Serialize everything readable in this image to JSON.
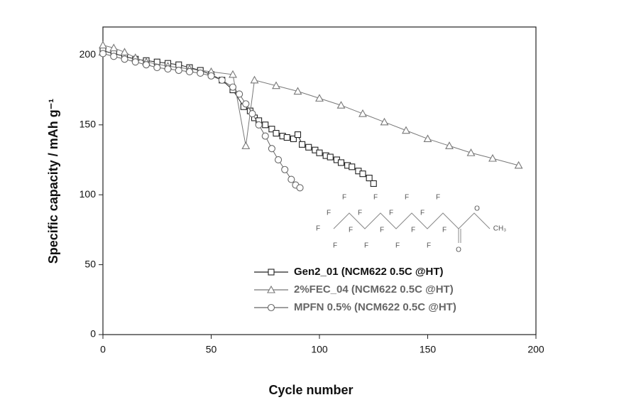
{
  "chart_data": {
    "type": "line",
    "x_label": "Cycle number",
    "y_label": "Specific capacity / mAh g⁻¹",
    "xlim": [
      0,
      200
    ],
    "ylim": [
      0,
      220
    ],
    "xticks": [
      0,
      50,
      100,
      150,
      200
    ],
    "yticks": [
      0,
      50,
      100,
      150,
      200
    ],
    "legend": "lower right",
    "series": [
      {
        "name": "Gen2_01 (NCM622 0.5C @HT)",
        "color": "#222222",
        "marker": "square",
        "x": [
          0,
          5,
          10,
          15,
          20,
          25,
          30,
          35,
          40,
          45,
          50,
          55,
          60,
          65,
          68,
          70,
          72,
          75,
          78,
          80,
          83,
          85,
          88,
          90,
          92,
          95,
          98,
          100,
          103,
          105,
          108,
          110,
          113,
          115,
          118,
          120,
          123,
          125
        ],
        "values": [
          203,
          201,
          199,
          197,
          196,
          195,
          194,
          193,
          191,
          189,
          186,
          182,
          175,
          163,
          160,
          155,
          153,
          150,
          147,
          144,
          142,
          141,
          140,
          143,
          136,
          134,
          132,
          130,
          128,
          127,
          125,
          123,
          121,
          120,
          117,
          115,
          112,
          108
        ]
      },
      {
        "name": "2%FEC_04 (NCM622 0.5C @HT)",
        "color": "#777777",
        "marker": "triangle",
        "x": [
          0,
          5,
          10,
          15,
          20,
          30,
          40,
          50,
          60,
          66,
          70,
          80,
          90,
          100,
          110,
          120,
          130,
          140,
          150,
          160,
          170,
          180,
          192
        ],
        "values": [
          207,
          205,
          202,
          198,
          195,
          192,
          190,
          188,
          186,
          135,
          182,
          178,
          174,
          169,
          164,
          158,
          152,
          146,
          140,
          135,
          130,
          126,
          121
        ]
      },
      {
        "name": "MPFN 0.5% (NCM622 0.5C @HT)",
        "color": "#666666",
        "marker": "circle",
        "x": [
          0,
          5,
          10,
          15,
          20,
          25,
          30,
          35,
          40,
          45,
          50,
          55,
          60,
          63,
          66,
          69,
          72,
          75,
          78,
          81,
          84,
          87,
          89,
          91
        ],
        "values": [
          201,
          199,
          197,
          195,
          193,
          191,
          190,
          189,
          188,
          187,
          185,
          182,
          177,
          172,
          165,
          158,
          150,
          142,
          133,
          125,
          118,
          111,
          107,
          105
        ]
      }
    ],
    "annotations": [
      "F",
      "F",
      "F",
      "F",
      "F",
      "F",
      "F",
      "F",
      "F",
      "F",
      "F",
      "F",
      "F",
      "F",
      "F",
      "F",
      "F",
      "O",
      "O",
      "CH₃"
    ]
  }
}
